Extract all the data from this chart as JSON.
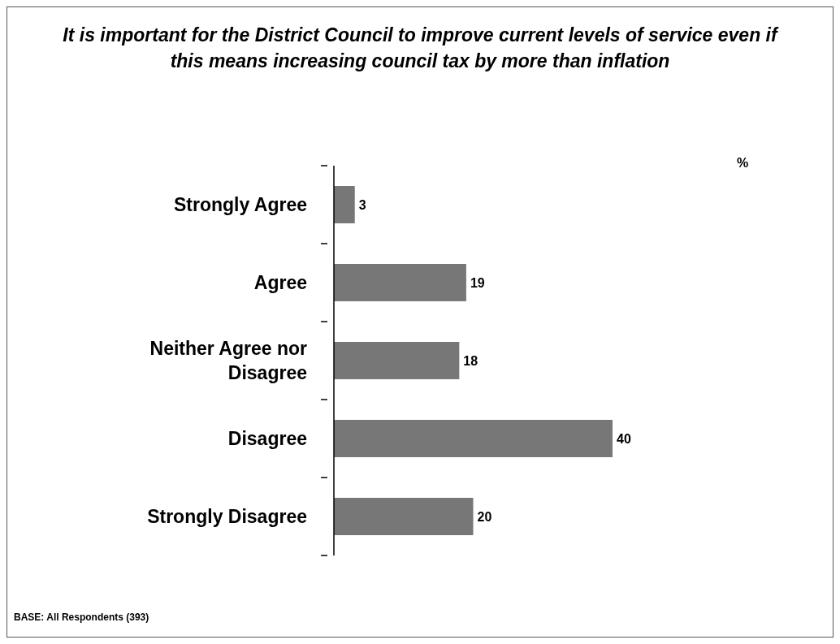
{
  "chart_data": {
    "type": "bar",
    "orientation": "horizontal",
    "title": "It is important for the District Council to improve current levels of service even if this means increasing council tax by more than inflation",
    "categories": [
      "Strongly Agree",
      "Agree",
      "Neither Agree nor Disagree",
      "Disagree",
      "Strongly Disagree"
    ],
    "values": [
      3,
      19,
      18,
      40,
      20
    ],
    "color": "#777777",
    "data_labels": true,
    "tick_labels": "y",
    "annotations": [
      "%",
      "BASE: All Respondents (393)"
    ]
  }
}
